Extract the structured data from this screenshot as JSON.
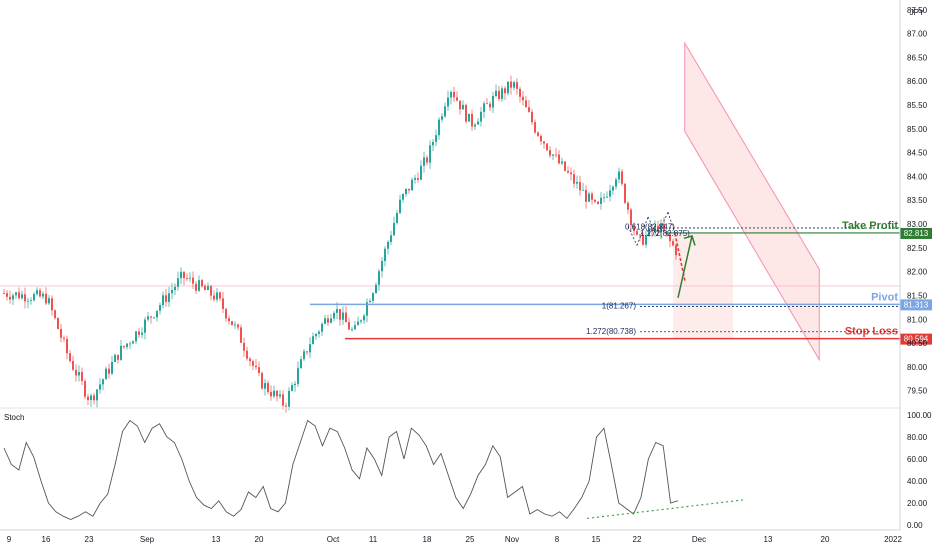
{
  "chart_data": [
    {
      "type": "candlestick",
      "title": "",
      "currency": "JPY",
      "ylim": [
        79.2,
        87.6
      ],
      "y_ticks": [
        "79.50",
        "80.00",
        "80.50",
        "81.00",
        "81.50",
        "82.00",
        "82.50",
        "83.00",
        "83.50",
        "84.00",
        "84.50",
        "85.00",
        "85.50",
        "86.00",
        "86.50",
        "87.00",
        "87.50"
      ],
      "x_ticks": [
        "9",
        "16",
        "23",
        "Sep",
        "13",
        "20",
        "Oct",
        "11",
        "18",
        "25",
        "Nov",
        "8",
        "15",
        "22",
        "Dec",
        "13",
        "20",
        "2022"
      ],
      "anchors": [
        [
          "9",
          81.55
        ],
        [
          "16",
          81.45
        ],
        [
          "16",
          80.2
        ],
        [
          "23",
          79.3
        ],
        [
          "23",
          80.3
        ],
        [
          "Sep",
          81.0
        ],
        [
          "Sep",
          81.9
        ],
        [
          "13",
          81.45
        ],
        [
          "13",
          80.7
        ],
        [
          "20",
          79.7
        ],
        [
          "20",
          79.2
        ],
        [
          "20",
          80.5
        ],
        [
          "Oct",
          81.25
        ],
        [
          "Oct",
          80.7
        ],
        [
          "11",
          81.7
        ],
        [
          "11",
          83.5
        ],
        [
          "18",
          84.4
        ],
        [
          "18",
          85.9
        ],
        [
          "25",
          85.1
        ],
        [
          "25",
          85.6
        ],
        [
          "Nov",
          85.95
        ],
        [
          "Nov",
          85.0
        ],
        [
          "8",
          84.3
        ],
        [
          "8",
          83.8
        ],
        [
          "15",
          83.3
        ],
        [
          "15",
          84.1
        ],
        [
          "22",
          82.6
        ],
        [
          "22",
          82.95
        ],
        [
          "22",
          82.35
        ]
      ],
      "channel": {
        "upper_start": [
          76,
          86.8
        ],
        "upper_end": [
          91,
          82.05
        ],
        "lower_start": [
          76,
          84.95
        ],
        "lower_end": [
          91,
          80.15
        ]
      },
      "levels": [
        {
          "name": "Take Profit",
          "value": 82.813,
          "label": "Take Profit",
          "tag": "82.813",
          "color": "#2e7d32"
        },
        {
          "name": "Pivot",
          "value": 81.313,
          "label": "Pivot",
          "tag": "81.313",
          "color": "#7aa6e6"
        },
        {
          "name": "Stop Loss",
          "value": 80.594,
          "label": "Stop Loss",
          "tag": "80.594",
          "color": "#e53935"
        }
      ],
      "fib_labels": [
        {
          "text": "1(81.267)",
          "value": 81.267
        },
        {
          "text": "1.272(80.738)",
          "value": 80.738
        },
        {
          "text": "0.618(82.847)",
          "value": 82.847
        },
        {
          "text": "1.272(82.875)",
          "value": 82.875
        }
      ],
      "top_label": "82.50"
    },
    {
      "type": "line",
      "title": "Stoch",
      "ylim": [
        0,
        100
      ],
      "y_ticks": [
        "0.00",
        "20.00",
        "40.00",
        "60.00",
        "80.00",
        "100.00"
      ],
      "values": [
        70,
        55,
        50,
        75,
        62,
        40,
        20,
        12,
        8,
        5,
        8,
        12,
        8,
        20,
        28,
        55,
        85,
        95,
        90,
        75,
        88,
        92,
        80,
        75,
        60,
        40,
        25,
        18,
        15,
        22,
        12,
        8,
        14,
        30,
        25,
        35,
        15,
        12,
        20,
        55,
        75,
        95,
        90,
        72,
        88,
        85,
        70,
        50,
        42,
        70,
        60,
        45,
        80,
        85,
        60,
        88,
        82,
        72,
        55,
        65,
        45,
        25,
        15,
        28,
        45,
        55,
        72,
        62,
        25,
        30,
        35,
        10,
        14,
        10,
        8,
        12,
        6,
        15,
        25,
        40,
        80,
        88,
        55,
        20,
        15,
        10,
        25,
        60,
        75,
        72,
        20,
        22
      ],
      "divergence_line": {
        "from": [
          74,
          6
        ],
        "to": [
          94,
          23
        ]
      }
    }
  ]
}
